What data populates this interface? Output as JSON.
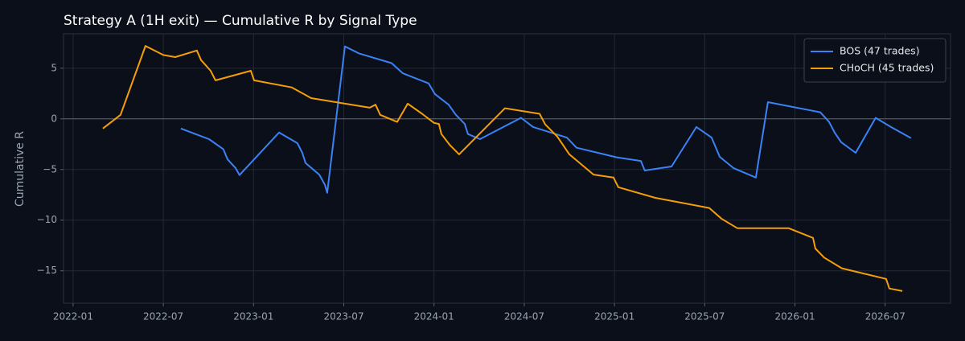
{
  "chart_data": {
    "type": "line",
    "title": "Strategy A (1H exit) — Cumulative R by Signal Type",
    "y_label": "Cumulative R",
    "xlim": [
      2021.947,
      2026.862
    ],
    "xticks": [
      {
        "value": 2022.0,
        "label": "2022-01"
      },
      {
        "value": 2022.5,
        "label": "2022-07"
      },
      {
        "value": 2023.0,
        "label": "2023-01"
      },
      {
        "value": 2023.5,
        "label": "2023-07"
      },
      {
        "value": 2024.0,
        "label": "2024-01"
      },
      {
        "value": 2024.5,
        "label": "2024-07"
      },
      {
        "value": 2025.0,
        "label": "2025-01"
      },
      {
        "value": 2025.5,
        "label": "2025-07"
      },
      {
        "value": 2026.0,
        "label": "2026-01"
      },
      {
        "value": 2026.5,
        "label": "2026-07"
      }
    ],
    "ylim": [
      -18.2,
      8.4
    ],
    "yticks": [
      {
        "value": -15,
        "label": "−15"
      },
      {
        "value": -10,
        "label": "−10"
      },
      {
        "value": -5,
        "label": "−5"
      },
      0,
      5
    ],
    "hline": 0,
    "grid": true,
    "legend": "upper right",
    "series": [
      {
        "name": "BOS (47 trades)",
        "color": "#3b82f6",
        "x": [
          2022.597,
          2022.753,
          2022.833,
          2022.856,
          2022.9,
          2022.922,
          2023.141,
          2023.243,
          2023.27,
          2023.288,
          2023.364,
          2023.395,
          2023.408,
          2023.506,
          2023.586,
          2023.765,
          2023.827,
          2023.97,
          2024.005,
          2024.081,
          2024.121,
          2024.17,
          2024.188,
          2024.255,
          2024.482,
          2024.549,
          2024.736,
          2024.79,
          2025.012,
          2025.146,
          2025.168,
          2025.316,
          2025.454,
          2025.538,
          2025.583,
          2025.659,
          2025.783,
          2025.85,
          2026.14,
          2026.189,
          2026.22,
          2026.256,
          2026.336,
          2026.447,
          2026.532,
          2026.643
        ],
        "values": [
          -0.95,
          -2.0,
          -3.0,
          -4.0,
          -4.85,
          -5.55,
          -1.35,
          -2.4,
          -3.35,
          -4.35,
          -5.5,
          -6.5,
          -7.3,
          7.15,
          6.45,
          5.5,
          4.5,
          3.5,
          2.45,
          1.4,
          0.4,
          -0.5,
          -1.5,
          -2.0,
          0.1,
          -0.8,
          -1.85,
          -2.85,
          -3.8,
          -4.15,
          -5.1,
          -4.7,
          -0.8,
          -1.85,
          -3.75,
          -4.85,
          -5.8,
          1.65,
          0.65,
          -0.3,
          -1.35,
          -2.3,
          -3.35,
          0.1,
          -0.8,
          -1.9
        ]
      },
      {
        "name": "CHoCH (45 trades)",
        "color": "#f59e0b",
        "x": [
          2022.165,
          2022.263,
          2022.401,
          2022.5,
          2022.566,
          2022.686,
          2022.709,
          2022.762,
          2022.789,
          2022.985,
          2023.003,
          2023.212,
          2023.319,
          2023.644,
          2023.676,
          2023.702,
          2023.796,
          2023.854,
          2023.934,
          2024.0,
          2024.027,
          2024.041,
          2024.086,
          2024.139,
          2024.393,
          2024.585,
          2024.616,
          2024.683,
          2024.75,
          2024.884,
          2024.995,
          2025.021,
          2025.226,
          2025.525,
          2025.592,
          2025.681,
          2025.966,
          2026.1,
          2026.113,
          2026.162,
          2026.26,
          2026.505,
          2026.523,
          2026.595
        ],
        "values": [
          -0.95,
          0.4,
          7.2,
          6.3,
          6.1,
          6.75,
          5.8,
          4.75,
          3.8,
          4.75,
          3.8,
          3.1,
          2.05,
          1.1,
          1.4,
          0.4,
          -0.3,
          1.5,
          0.5,
          -0.4,
          -0.5,
          -1.5,
          -2.55,
          -3.5,
          1.05,
          0.5,
          -0.55,
          -1.75,
          -3.5,
          -5.5,
          -5.8,
          -6.75,
          -7.8,
          -8.8,
          -9.85,
          -10.8,
          -10.8,
          -11.75,
          -12.8,
          -13.7,
          -14.75,
          -15.8,
          -16.75,
          -17.0
        ]
      }
    ]
  }
}
